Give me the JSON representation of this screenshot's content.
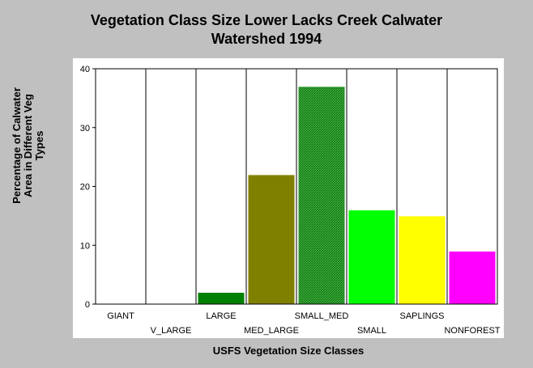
{
  "chart_data": {
    "type": "bar",
    "title_lines": [
      "Vegetation Class Size Lower Lacks Creek Calwater",
      "Watershed 1994"
    ],
    "xlabel": "USFS Vegetation Size Classes",
    "ylabel_lines": [
      "Percentage of Calwater",
      "Area in Different Veg",
      "Types"
    ],
    "categories": [
      "GIANT",
      "V_LARGE",
      "LARGE",
      "MED_LARGE",
      "SMALL_MED",
      "SMALL",
      "SAPLINGS",
      "NONFOREST"
    ],
    "values": [
      0,
      0,
      2,
      22,
      37,
      16,
      15,
      9
    ],
    "colors": [
      "#808080",
      "#808080",
      "#008000",
      "#808000",
      "#2e9a2e",
      "#00ff00",
      "#ffff00",
      "#ff00ff"
    ],
    "hatched": [
      false,
      false,
      false,
      false,
      true,
      false,
      false,
      false
    ],
    "ylim": [
      0,
      40
    ],
    "yticks": [
      0,
      10,
      20,
      30,
      40
    ],
    "grid": "vertical",
    "legend": "none"
  }
}
